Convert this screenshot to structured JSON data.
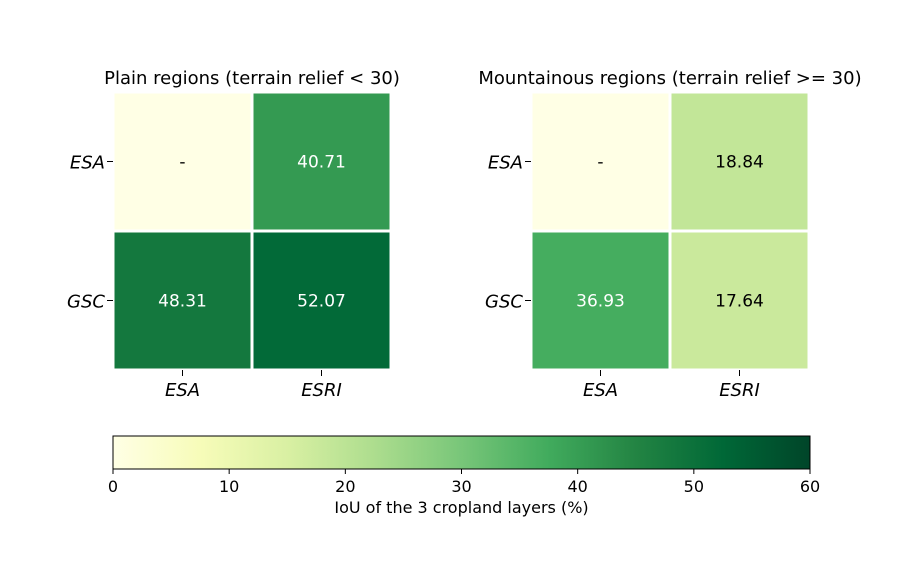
{
  "chart_data": [
    {
      "type": "heatmap",
      "title": "Plain regions (terrain relief < 30)",
      "rows": [
        "ESA",
        "GSC"
      ],
      "cols": [
        "ESA",
        "ESRI"
      ],
      "values": [
        [
          null,
          40.71
        ],
        [
          48.31,
          52.07
        ]
      ],
      "cell_labels": [
        [
          "-",
          "40.71"
        ],
        [
          "48.31",
          "52.07"
        ]
      ]
    },
    {
      "type": "heatmap",
      "title": "Mountainous regions (terrain relief >= 30)",
      "rows": [
        "ESA",
        "GSC"
      ],
      "cols": [
        "ESA",
        "ESRI"
      ],
      "values": [
        [
          null,
          18.84
        ],
        [
          36.93,
          17.64
        ]
      ],
      "cell_labels": [
        [
          "-",
          "18.84"
        ],
        [
          "36.93",
          "17.64"
        ]
      ]
    }
  ],
  "colorbar": {
    "label": "IoU of the 3 cropland layers (%)",
    "range": [
      0,
      60
    ],
    "ticks": [
      "0",
      "10",
      "20",
      "30",
      "40",
      "50",
      "60"
    ],
    "colormap": "YlGn",
    "colors": [
      "#ffffe5",
      "#f7fcb9",
      "#d9f0a3",
      "#addd8e",
      "#78c679",
      "#41ab5d",
      "#238443",
      "#006837",
      "#004529"
    ]
  }
}
